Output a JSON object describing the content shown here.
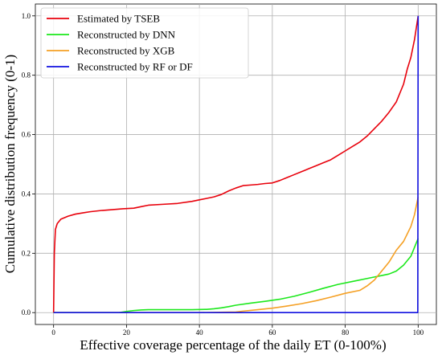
{
  "chart_data": {
    "type": "line",
    "xlabel": "Effective coverage percentage of the daily ET (0-100%)",
    "ylabel": "Cumulative distribution frequency (0-1)",
    "xlim": [
      -5,
      105
    ],
    "ylim": [
      -0.04,
      1.04
    ],
    "xticks": [
      "0",
      "20",
      "40",
      "60",
      "80",
      "100"
    ],
    "yticks": [
      "0.0",
      "0.2",
      "0.4",
      "0.6",
      "0.8",
      "1.0"
    ],
    "grid": true,
    "legend_position": "top-left",
    "series": [
      {
        "name": "Estimated by TSEB",
        "color": "#e8000b",
        "x": [
          0,
          0.2,
          0.5,
          1,
          2,
          4,
          6,
          8,
          10,
          13,
          16,
          19,
          22,
          24,
          26,
          30,
          34,
          38,
          40,
          42,
          44,
          46,
          48,
          50,
          52,
          54,
          56,
          58,
          60,
          62,
          64,
          66,
          68,
          70,
          72,
          74,
          76,
          78,
          80,
          82,
          84,
          86,
          88,
          90,
          92,
          94,
          96,
          97,
          98,
          99,
          99.5,
          100
        ],
        "y": [
          0.0,
          0.2,
          0.28,
          0.3,
          0.315,
          0.325,
          0.332,
          0.336,
          0.34,
          0.344,
          0.347,
          0.35,
          0.352,
          0.357,
          0.362,
          0.365,
          0.368,
          0.375,
          0.38,
          0.385,
          0.39,
          0.398,
          0.41,
          0.42,
          0.428,
          0.43,
          0.432,
          0.435,
          0.437,
          0.445,
          0.455,
          0.465,
          0.475,
          0.485,
          0.495,
          0.505,
          0.515,
          0.53,
          0.545,
          0.56,
          0.575,
          0.595,
          0.62,
          0.645,
          0.675,
          0.71,
          0.77,
          0.82,
          0.86,
          0.92,
          0.96,
          1.0
        ]
      },
      {
        "name": "Reconstructed by DNN",
        "color": "#1ce81c",
        "x": [
          0,
          18,
          20,
          22,
          24,
          26,
          30,
          34,
          38,
          42,
          44,
          46,
          48,
          50,
          54,
          58,
          62,
          66,
          70,
          74,
          78,
          82,
          86,
          88,
          90,
          92,
          94,
          96,
          98,
          99,
          100
        ],
        "y": [
          0.0,
          0.0,
          0.004,
          0.007,
          0.009,
          0.01,
          0.01,
          0.01,
          0.01,
          0.011,
          0.013,
          0.016,
          0.02,
          0.025,
          0.032,
          0.038,
          0.045,
          0.055,
          0.068,
          0.082,
          0.095,
          0.105,
          0.115,
          0.12,
          0.125,
          0.13,
          0.14,
          0.16,
          0.19,
          0.22,
          0.25
        ]
      },
      {
        "name": "Reconstructed by XGB",
        "color": "#f5a024",
        "x": [
          0,
          20,
          30,
          40,
          50,
          52,
          56,
          60,
          64,
          68,
          72,
          76,
          80,
          84,
          86,
          88,
          90,
          92,
          94,
          96,
          98,
          99,
          100
        ],
        "y": [
          0.0,
          0.0,
          0.0,
          0.0,
          0.002,
          0.005,
          0.01,
          0.015,
          0.022,
          0.03,
          0.04,
          0.052,
          0.065,
          0.075,
          0.09,
          0.11,
          0.14,
          0.17,
          0.21,
          0.24,
          0.29,
          0.33,
          0.39
        ]
      },
      {
        "name": "Reconstructed by RF or DF",
        "color": "#1111e0",
        "x": [
          0,
          99.9,
          100
        ],
        "y": [
          0.0,
          0.0,
          1.0
        ]
      }
    ]
  }
}
